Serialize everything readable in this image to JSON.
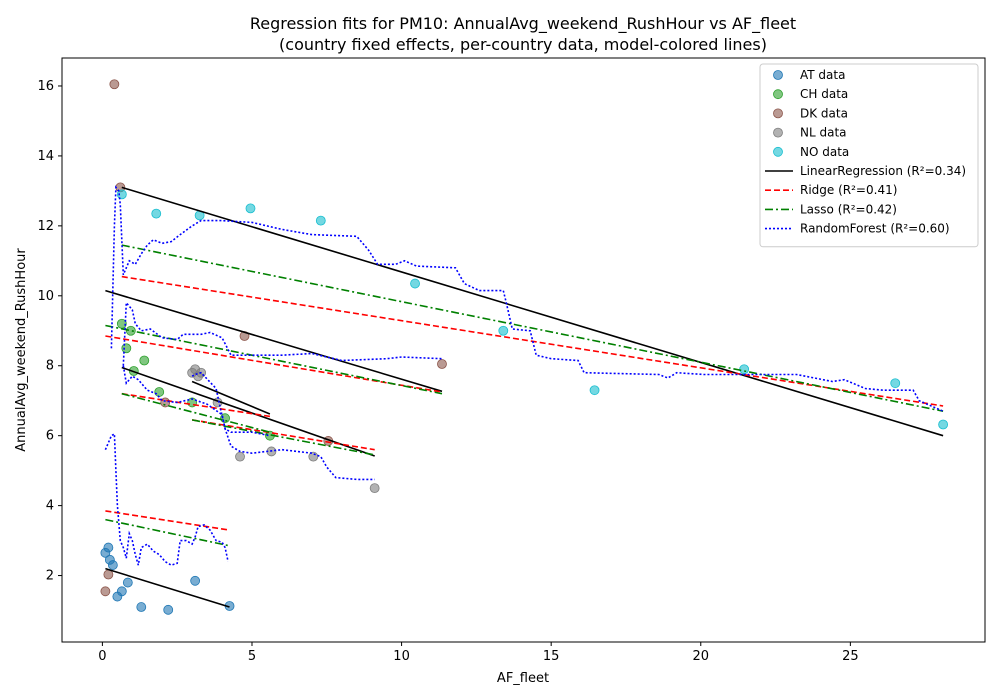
{
  "chart_data": {
    "type": "scatter",
    "title": "Regression fits for PM10: AnnualAvg_weekend_RushHour vs AF_fleet",
    "subtitle": "(country fixed effects, per-country data, model-colored lines)",
    "xlabel": "AF_fleet",
    "ylabel": "AnnualAvg_weekend_RushHour",
    "xlim": [
      -1.35,
      29.5
    ],
    "ylim": [
      0.1,
      16.8
    ],
    "xticks": [
      0,
      5,
      10,
      15,
      20,
      25
    ],
    "yticks": [
      2,
      4,
      6,
      8,
      10,
      12,
      14,
      16
    ],
    "grid": false,
    "legend_position": "top-right",
    "scatter_series": [
      {
        "name": "AT data",
        "color": "#1f77b4",
        "points": [
          [
            0.1,
            2.65
          ],
          [
            0.2,
            2.8
          ],
          [
            0.25,
            2.45
          ],
          [
            0.35,
            2.3
          ],
          [
            0.5,
            1.4
          ],
          [
            0.65,
            1.55
          ],
          [
            0.85,
            1.8
          ],
          [
            1.3,
            1.1
          ],
          [
            2.2,
            1.02
          ],
          [
            3.1,
            1.85
          ],
          [
            4.25,
            1.13
          ]
        ]
      },
      {
        "name": "CH data",
        "color": "#2ca02c",
        "points": [
          [
            0.65,
            9.2
          ],
          [
            0.8,
            8.5
          ],
          [
            0.95,
            9.0
          ],
          [
            1.05,
            7.85
          ],
          [
            1.4,
            8.15
          ],
          [
            1.9,
            7.25
          ],
          [
            3.0,
            6.95
          ],
          [
            4.1,
            6.5
          ],
          [
            5.6,
            6.0
          ]
        ]
      },
      {
        "name": "DK data",
        "color": "#8c564b",
        "points": [
          [
            0.1,
            1.55
          ],
          [
            0.2,
            2.03
          ],
          [
            0.4,
            16.05
          ],
          [
            0.6,
            13.1
          ],
          [
            2.1,
            6.95
          ],
          [
            4.75,
            8.85
          ],
          [
            7.55,
            5.85
          ],
          [
            11.35,
            8.05
          ]
        ]
      },
      {
        "name": "NL data",
        "color": "#7f7f7f",
        "points": [
          [
            3.0,
            7.8
          ],
          [
            3.1,
            7.9
          ],
          [
            3.2,
            7.7
          ],
          [
            3.3,
            7.8
          ],
          [
            3.85,
            6.95
          ],
          [
            4.6,
            5.4
          ],
          [
            5.65,
            5.55
          ],
          [
            7.05,
            5.4
          ],
          [
            9.1,
            4.5
          ]
        ]
      },
      {
        "name": "NO data",
        "color": "#17becf",
        "points": [
          [
            0.65,
            12.9
          ],
          [
            1.8,
            12.35
          ],
          [
            3.25,
            12.3
          ],
          [
            4.95,
            12.5
          ],
          [
            7.3,
            12.15
          ],
          [
            10.45,
            10.35
          ],
          [
            13.4,
            9.0
          ],
          [
            16.45,
            7.3
          ],
          [
            21.45,
            7.9
          ],
          [
            26.5,
            7.5
          ],
          [
            28.1,
            6.32
          ]
        ]
      }
    ],
    "line_series": [
      {
        "name": "LinearRegression (R²=0.34)",
        "color": "#000000",
        "style": "solid",
        "segments": [
          [
            [
              0.1,
              2.2
            ],
            [
              4.25,
              1.1
            ]
          ],
          [
            [
              0.65,
              7.95
            ],
            [
              9.1,
              5.42
            ]
          ],
          [
            [
              0.1,
              10.15
            ],
            [
              11.35,
              7.27
            ]
          ],
          [
            [
              0.65,
              13.1
            ],
            [
              28.1,
              6.0
            ]
          ],
          [
            [
              3.0,
              7.55
            ],
            [
              5.6,
              6.62
            ]
          ]
        ]
      },
      {
        "name": "Ridge (R²=0.41)",
        "color": "#ff0000",
        "style": "dashed",
        "segments": [
          [
            [
              0.1,
              3.85
            ],
            [
              4.25,
              3.3
            ]
          ],
          [
            [
              0.65,
              7.2
            ],
            [
              5.6,
              6.55
            ]
          ],
          [
            [
              0.1,
              8.85
            ],
            [
              11.35,
              7.25
            ]
          ],
          [
            [
              0.65,
              10.55
            ],
            [
              28.1,
              6.85
            ]
          ],
          [
            [
              3.0,
              6.45
            ],
            [
              9.1,
              5.6
            ]
          ]
        ]
      },
      {
        "name": "Lasso (R²=0.42)",
        "color": "#008000",
        "style": "dashdot",
        "segments": [
          [
            [
              0.1,
              3.6
            ],
            [
              4.25,
              2.85
            ]
          ],
          [
            [
              0.65,
              7.2
            ],
            [
              5.6,
              6.1
            ]
          ],
          [
            [
              0.1,
              9.15
            ],
            [
              11.35,
              7.2
            ]
          ],
          [
            [
              0.65,
              11.45
            ],
            [
              28.1,
              6.7
            ]
          ],
          [
            [
              3.0,
              6.45
            ],
            [
              9.1,
              5.45
            ]
          ]
        ]
      },
      {
        "name": "RandomForest (R²=0.60)",
        "color": "#0000ff",
        "style": "dotted",
        "segments": [
          [
            [
              0.1,
              5.6
            ],
            [
              0.2,
              5.8
            ],
            [
              0.3,
              6.0
            ],
            [
              0.4,
              6.05
            ],
            [
              0.45,
              5.0
            ],
            [
              0.5,
              4.0
            ],
            [
              0.6,
              3.0
            ],
            [
              0.7,
              2.8
            ],
            [
              0.8,
              2.5
            ],
            [
              0.9,
              3.2
            ],
            [
              1.0,
              3.0
            ],
            [
              1.1,
              2.6
            ],
            [
              1.2,
              2.3
            ],
            [
              1.3,
              2.8
            ],
            [
              1.5,
              2.9
            ],
            [
              1.7,
              2.7
            ],
            [
              1.9,
              2.6
            ],
            [
              2.1,
              2.4
            ],
            [
              2.3,
              2.3
            ],
            [
              2.5,
              2.35
            ],
            [
              2.6,
              3.0
            ],
            [
              2.8,
              3.0
            ],
            [
              3.0,
              2.9
            ],
            [
              3.1,
              3.1
            ],
            [
              3.2,
              3.4
            ],
            [
              3.4,
              3.45
            ],
            [
              3.6,
              3.3
            ],
            [
              3.8,
              3.0
            ],
            [
              4.0,
              2.95
            ],
            [
              4.1,
              2.8
            ],
            [
              4.2,
              2.4
            ]
          ],
          [
            [
              0.3,
              8.5
            ],
            [
              0.4,
              12.0
            ],
            [
              0.45,
              13.1
            ],
            [
              0.55,
              13.0
            ],
            [
              0.6,
              12.6
            ],
            [
              0.7,
              10.6
            ],
            [
              0.9,
              11.0
            ],
            [
              1.1,
              10.9
            ],
            [
              1.3,
              11.2
            ],
            [
              1.5,
              11.45
            ],
            [
              1.7,
              11.6
            ],
            [
              2.0,
              11.5
            ],
            [
              2.3,
              11.55
            ],
            [
              2.6,
              11.75
            ],
            [
              3.0,
              12.0
            ],
            [
              3.3,
              12.15
            ],
            [
              4.0,
              12.15
            ],
            [
              5.0,
              12.1
            ],
            [
              6.0,
              11.9
            ],
            [
              7.0,
              11.75
            ],
            [
              8.5,
              11.7
            ],
            [
              8.9,
              11.3
            ],
            [
              9.2,
              10.9
            ],
            [
              9.8,
              10.9
            ],
            [
              10.1,
              11.0
            ],
            [
              10.5,
              10.85
            ],
            [
              11.8,
              10.8
            ],
            [
              12.1,
              10.35
            ],
            [
              12.6,
              10.15
            ],
            [
              13.4,
              10.15
            ],
            [
              13.5,
              9.8
            ],
            [
              13.7,
              9.05
            ],
            [
              14.3,
              9.0
            ],
            [
              14.5,
              8.3
            ],
            [
              15.0,
              8.2
            ],
            [
              15.9,
              8.15
            ],
            [
              16.1,
              7.8
            ],
            [
              18.6,
              7.75
            ],
            [
              18.9,
              7.65
            ],
            [
              19.2,
              7.8
            ],
            [
              20.1,
              7.75
            ],
            [
              23.2,
              7.75
            ],
            [
              24.4,
              7.55
            ],
            [
              24.8,
              7.6
            ],
            [
              25.5,
              7.35
            ],
            [
              26.1,
              7.3
            ],
            [
              27.1,
              7.3
            ],
            [
              27.3,
              7.0
            ],
            [
              28.1,
              6.7
            ]
          ],
          [
            [
              0.7,
              8.0
            ],
            [
              0.8,
              9.8
            ],
            [
              0.9,
              9.7
            ],
            [
              1.0,
              9.6
            ],
            [
              1.1,
              9.2
            ],
            [
              1.3,
              9.0
            ],
            [
              1.6,
              9.05
            ],
            [
              2.0,
              8.8
            ],
            [
              2.5,
              8.75
            ],
            [
              2.7,
              8.9
            ],
            [
              3.3,
              8.9
            ],
            [
              3.6,
              8.95
            ],
            [
              4.0,
              8.8
            ],
            [
              4.3,
              8.3
            ],
            [
              5.0,
              8.3
            ],
            [
              6.0,
              8.3
            ],
            [
              7.0,
              8.35
            ],
            [
              8.0,
              8.15
            ],
            [
              9.5,
              8.2
            ],
            [
              10.0,
              8.25
            ],
            [
              11.35,
              8.2
            ]
          ],
          [
            [
              0.7,
              8.0
            ],
            [
              0.8,
              7.5
            ],
            [
              1.0,
              7.7
            ],
            [
              1.2,
              7.6
            ],
            [
              1.5,
              7.3
            ],
            [
              1.8,
              7.2
            ],
            [
              2.0,
              7.0
            ],
            [
              2.5,
              6.95
            ],
            [
              3.0,
              7.05
            ],
            [
              3.5,
              6.9
            ],
            [
              4.0,
              6.6
            ],
            [
              4.1,
              6.2
            ],
            [
              4.3,
              6.1
            ],
            [
              5.0,
              6.1
            ],
            [
              5.6,
              6.0
            ]
          ],
          [
            [
              3.0,
              7.7
            ],
            [
              3.1,
              7.75
            ],
            [
              3.3,
              7.8
            ],
            [
              3.8,
              7.35
            ],
            [
              3.9,
              6.95
            ],
            [
              4.1,
              6.2
            ],
            [
              4.3,
              5.7
            ],
            [
              4.6,
              5.55
            ],
            [
              5.0,
              5.5
            ],
            [
              5.5,
              5.55
            ],
            [
              6.0,
              5.6
            ],
            [
              6.5,
              5.55
            ],
            [
              7.0,
              5.5
            ],
            [
              7.3,
              5.4
            ],
            [
              7.5,
              5.1
            ],
            [
              7.8,
              4.8
            ],
            [
              8.5,
              4.75
            ],
            [
              9.1,
              4.75
            ]
          ]
        ]
      }
    ]
  }
}
